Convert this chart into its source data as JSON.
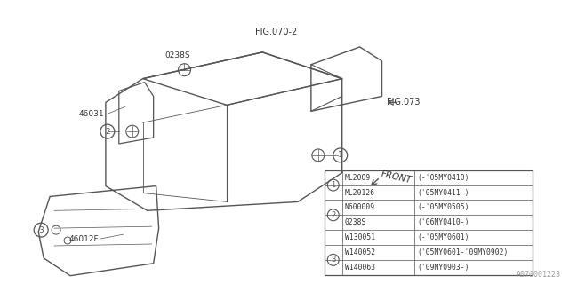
{
  "bg_color": "#ffffff",
  "line_color": "#555555",
  "text_color": "#333333",
  "fig_w": 6.4,
  "fig_h": 3.2,
  "dpi": 100,
  "labels": {
    "fig070_2": "FIG.070-2",
    "fig073": "FIG.073",
    "label_0238S": "0238S",
    "label_46031": "46031",
    "label_46012F": "46012F",
    "front": "FRONT",
    "watermark": "A070001223"
  },
  "callouts": [
    {
      "num": "1",
      "col1": "ML2009  ",
      "col2": "(-'05MY0410)"
    },
    {
      "num": "1",
      "col1": "ML20126 ",
      "col2": "('05MY0411-)"
    },
    {
      "num": "2",
      "col1": "N600009 ",
      "col2": "(-'05MY0505)"
    },
    {
      "num": "2",
      "col1": "0238S   ",
      "col2": "('06MY0410-)"
    },
    {
      "num": "",
      "col1": "W130051 ",
      "col2": "(-'05MY0601)"
    },
    {
      "num": "3",
      "col1": "W140052 ",
      "col2": "('05MY0601-'09MY0902)"
    },
    {
      "num": "3",
      "col1": "W140063 ",
      "col2": "('09MY0903-)"
    }
  ]
}
